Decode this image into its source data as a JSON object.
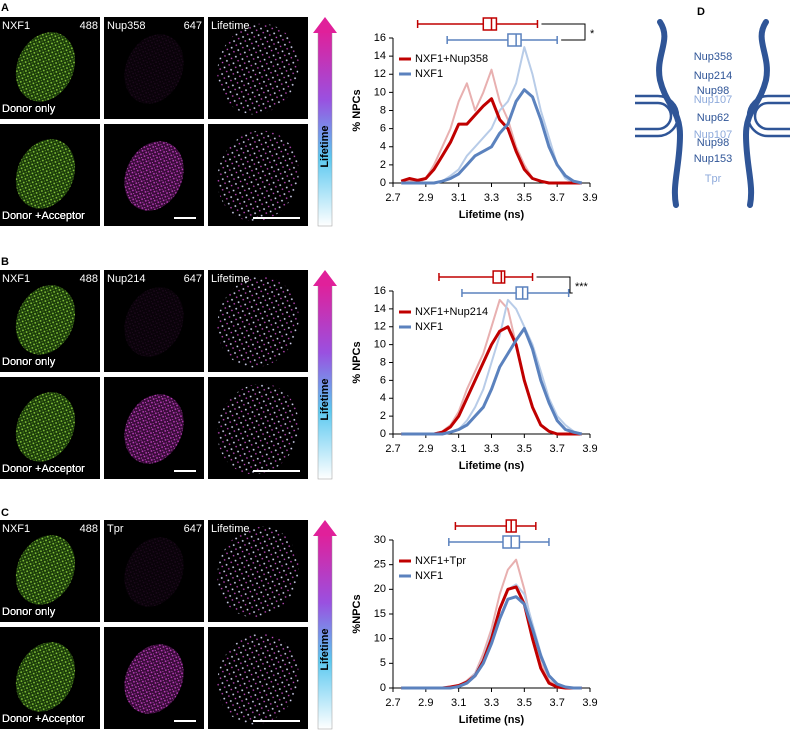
{
  "panels": [
    {
      "letter": "A",
      "channels": [
        "NXF1",
        "488",
        "Nup358",
        "647",
        "Lifetime"
      ],
      "rows": [
        "Donor only",
        "Donor +Acceptor"
      ],
      "colorbar": "Lifetime"
    },
    {
      "letter": "B",
      "channels": [
        "NXF1",
        "488",
        "Nup214",
        "647",
        "Lifetime"
      ],
      "rows": [
        "Donor only",
        "Donor +Acceptor"
      ],
      "colorbar": "Lifetime"
    },
    {
      "letter": "C",
      "channels": [
        "NXF1",
        "488",
        "Tpr",
        "647",
        "Lifetime"
      ],
      "rows": [
        "Donor only",
        "Donor +Acceptor"
      ],
      "colorbar": "Lifetime"
    }
  ],
  "chart_data": [
    {
      "type": "line",
      "xlabel": "Lifetime (ns)",
      "ylabel": "% NPCs",
      "significance": "*",
      "x": [
        2.75,
        2.8,
        2.85,
        2.9,
        2.95,
        3.0,
        3.05,
        3.1,
        3.15,
        3.2,
        3.25,
        3.3,
        3.35,
        3.4,
        3.45,
        3.5,
        3.55,
        3.6,
        3.65,
        3.7,
        3.75,
        3.8,
        3.85
      ],
      "xlim": [
        2.7,
        3.9
      ],
      "xticks": [
        2.7,
        2.9,
        3.1,
        3.3,
        3.5,
        3.7,
        3.9
      ],
      "ylim": [
        0,
        16
      ],
      "yticks": [
        0,
        2,
        4,
        6,
        8,
        10,
        12,
        14,
        16
      ],
      "series": [
        {
          "color": "#e8b0b0",
          "values": [
            0,
            0.3,
            0,
            0.5,
            2,
            4,
            6,
            9,
            11,
            8,
            10,
            12.5,
            9,
            7,
            4,
            2,
            0.5,
            0.2,
            0,
            0,
            0,
            0,
            0
          ]
        },
        {
          "color": "#b8cce8",
          "values": [
            0,
            0,
            0,
            0,
            0,
            0.2,
            0.8,
            1.5,
            3,
            4,
            5,
            6,
            8,
            9,
            11,
            15,
            12,
            8,
            5,
            2,
            0.5,
            0,
            0
          ]
        },
        {
          "name": "NXF1+Nup358",
          "color": "#c00000",
          "values": [
            0.2,
            0.5,
            0.3,
            0.5,
            1.5,
            3,
            4.5,
            6.5,
            6.5,
            7.5,
            8.5,
            9.3,
            7,
            6,
            3.5,
            1.5,
            0.5,
            0.2,
            0,
            0,
            0,
            0,
            0
          ]
        },
        {
          "name": "NXF1",
          "color": "#5b82be",
          "values": [
            0,
            0,
            0,
            0,
            0,
            0.2,
            0.5,
            1,
            2,
            3,
            3.5,
            4,
            5.5,
            6.5,
            9,
            10.3,
            9.5,
            7,
            4,
            2,
            0.8,
            0.2,
            0
          ]
        }
      ],
      "boxes": [
        {
          "color": "#c00000",
          "min": 2.85,
          "q1": 3.25,
          "median": 3.3,
          "q3": 3.33,
          "max": 3.58
        },
        {
          "color": "#5b82be",
          "min": 3.03,
          "q1": 3.4,
          "median": 3.45,
          "q3": 3.48,
          "max": 3.7
        }
      ]
    },
    {
      "type": "line",
      "xlabel": "Lifetime (ns)",
      "ylabel": "% NPCs",
      "significance": "***",
      "x": [
        2.75,
        2.8,
        2.85,
        2.9,
        2.95,
        3.0,
        3.05,
        3.1,
        3.15,
        3.2,
        3.25,
        3.3,
        3.35,
        3.4,
        3.45,
        3.5,
        3.55,
        3.6,
        3.65,
        3.7,
        3.75,
        3.8,
        3.85
      ],
      "xlim": [
        2.7,
        3.9
      ],
      "xticks": [
        2.7,
        2.9,
        3.1,
        3.3,
        3.5,
        3.7,
        3.9
      ],
      "ylim": [
        0,
        16
      ],
      "yticks": [
        0,
        2,
        4,
        6,
        8,
        10,
        12,
        14,
        16
      ],
      "series": [
        {
          "color": "#e8b0b0",
          "values": [
            0,
            0,
            0,
            0,
            0,
            0.3,
            1,
            2.5,
            5,
            7,
            9,
            12,
            15,
            14,
            10,
            6,
            3,
            1,
            0.3,
            0,
            0,
            0,
            0
          ]
        },
        {
          "color": "#b8cce8",
          "values": [
            0,
            0,
            0,
            0,
            0,
            0,
            0.2,
            0.5,
            1.5,
            3,
            5,
            8,
            11,
            15,
            14,
            12,
            10,
            7,
            4,
            2,
            1,
            0.3,
            0
          ]
        },
        {
          "name": "NXF1+Nup214",
          "color": "#c00000",
          "values": [
            0,
            0,
            0,
            0,
            0,
            0.2,
            0.8,
            2,
            4,
            6,
            8,
            10,
            11.5,
            12,
            10,
            6,
            3,
            1,
            0.3,
            0,
            0,
            0,
            0
          ]
        },
        {
          "name": "NXF1",
          "color": "#5b82be",
          "values": [
            0,
            0,
            0,
            0,
            0,
            0,
            0.2,
            0.5,
            1,
            2,
            3,
            5,
            7.5,
            9,
            10.5,
            11.8,
            9.5,
            6,
            3.5,
            1.5,
            0.5,
            0.2,
            0
          ]
        }
      ],
      "boxes": [
        {
          "color": "#c00000",
          "min": 2.98,
          "q1": 3.31,
          "median": 3.36,
          "q3": 3.38,
          "max": 3.55
        },
        {
          "color": "#5b82be",
          "min": 3.12,
          "q1": 3.45,
          "median": 3.49,
          "q3": 3.52,
          "max": 3.77
        }
      ]
    },
    {
      "type": "line",
      "xlabel": "Lifetime (ns)",
      "ylabel": "%NPCs",
      "x": [
        2.75,
        2.8,
        2.85,
        2.9,
        2.95,
        3.0,
        3.05,
        3.1,
        3.15,
        3.2,
        3.25,
        3.3,
        3.35,
        3.4,
        3.45,
        3.5,
        3.55,
        3.6,
        3.65,
        3.7,
        3.75,
        3.8,
        3.85
      ],
      "xlim": [
        2.7,
        3.9
      ],
      "xticks": [
        2.7,
        2.9,
        3.1,
        3.3,
        3.5,
        3.7,
        3.9
      ],
      "ylim": [
        0,
        30
      ],
      "yticks": [
        0,
        5,
        10,
        15,
        20,
        25,
        30
      ],
      "series": [
        {
          "color": "#e8b0b0",
          "values": [
            0,
            0,
            0,
            0,
            0,
            0,
            0.2,
            0.5,
            1.5,
            3,
            7,
            12,
            19,
            24,
            26,
            20,
            12,
            5,
            1.5,
            0.3,
            0,
            0,
            0
          ]
        },
        {
          "color": "#b8cce8",
          "values": [
            0,
            0,
            0,
            0,
            0,
            0,
            0,
            0.3,
            1,
            3,
            6,
            11,
            16,
            20,
            21,
            19,
            13,
            7,
            2.5,
            0.5,
            0.2,
            0,
            0
          ]
        },
        {
          "name": "NXF1+Tpr",
          "color": "#c00000",
          "values": [
            0,
            0,
            0,
            0,
            0,
            0,
            0.2,
            0.5,
            1.2,
            2.5,
            5.5,
            10,
            16,
            20,
            20.5,
            17,
            10,
            4,
            1,
            0.2,
            0,
            0,
            0
          ]
        },
        {
          "name": "NXF1",
          "color": "#5b82be",
          "values": [
            0,
            0,
            0,
            0,
            0,
            0,
            0,
            0.3,
            1,
            2.5,
            5,
            9,
            14,
            18,
            18.5,
            17,
            12,
            6.5,
            2.5,
            0.8,
            0.2,
            0,
            0
          ]
        }
      ],
      "boxes": [
        {
          "color": "#c00000",
          "min": 3.08,
          "q1": 3.39,
          "median": 3.42,
          "q3": 3.45,
          "max": 3.57
        },
        {
          "color": "#5b82be",
          "min": 3.04,
          "q1": 3.37,
          "median": 3.42,
          "q3": 3.47,
          "max": 3.65
        }
      ]
    }
  ],
  "diagram": {
    "letter": "D",
    "labels": [
      {
        "text": "Nup358",
        "color": "#2f5597"
      },
      {
        "text": "Nup214",
        "color": "#2f5597"
      },
      {
        "text": "Nup98",
        "color": "#2f5597"
      },
      {
        "text": "Nup107",
        "color": "#8eaadb"
      },
      {
        "text": "Nup62",
        "color": "#2f5597"
      },
      {
        "text": "Nup107",
        "color": "#8eaadb"
      },
      {
        "text": "Nup98",
        "color": "#2f5597"
      },
      {
        "text": "Nup153",
        "color": "#2f5597"
      },
      {
        "text": "Tpr",
        "color": "#8eaadb"
      }
    ]
  }
}
